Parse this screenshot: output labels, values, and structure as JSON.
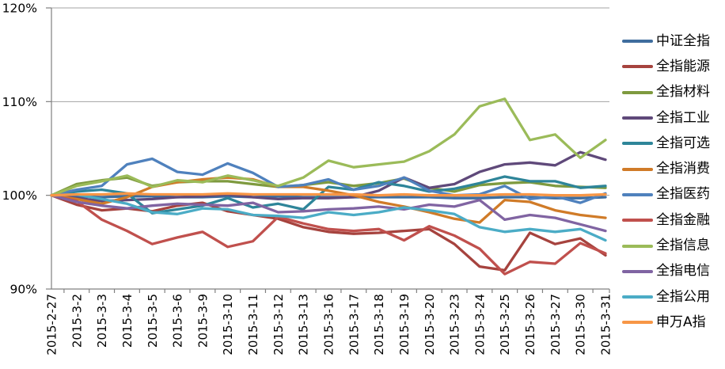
{
  "chart_data": {
    "type": "line",
    "title": "",
    "legend_position": "right",
    "grid": true,
    "y_axis": {
      "min": 90,
      "max": 120,
      "step": 10,
      "tick_labels": [
        "90%",
        "100%",
        "110%",
        "120%"
      ]
    },
    "x_axis": {
      "categories": [
        "2015-2-27",
        "2015-3-2",
        "2015-3-3",
        "2015-3-4",
        "2015-3-5",
        "2015-3-6",
        "2015-3-9",
        "2015-3-10",
        "2015-3-11",
        "2015-3-12",
        "2015-3-13",
        "2015-3-16",
        "2015-3-17",
        "2015-3-18",
        "2015-3-19",
        "2015-3-20",
        "2015-3-23",
        "2015-3-24",
        "2015-3-25",
        "2015-3-26",
        "2015-3-27",
        "2015-3-30",
        "2015-3-31"
      ]
    },
    "series": [
      {
        "name": "中证全指",
        "color": "#3F6D9E",
        "values": [
          100,
          99.9,
          99.8,
          99.9,
          99.9,
          99.8,
          99.8,
          99.9,
          99.8,
          99.9,
          99.8,
          99.8,
          99.8,
          99.8,
          99.8,
          99.8,
          99.7,
          99.7,
          99.8,
          99.8,
          99.7,
          99.7,
          99.8
        ]
      },
      {
        "name": "全指能源",
        "color": "#A6433E",
        "values": [
          100,
          99.0,
          98.4,
          98.6,
          98.3,
          98.9,
          99.2,
          98.3,
          97.9,
          97.5,
          96.6,
          96.1,
          95.9,
          96.0,
          96.2,
          96.4,
          94.8,
          92.4,
          92.0,
          96.0,
          94.8,
          95.4,
          93.6
        ]
      },
      {
        "name": "全指材料",
        "color": "#7E9A3F",
        "values": [
          100,
          101.2,
          101.6,
          101.9,
          101.0,
          101.4,
          101.5,
          101.5,
          101.2,
          100.9,
          101.1,
          101.4,
          101.0,
          101.3,
          101.8,
          100.8,
          100.4,
          101.1,
          101.3,
          101.4,
          101.0,
          100.9,
          100.8
        ]
      },
      {
        "name": "全指工业",
        "color": "#5F497A",
        "values": [
          100,
          99.7,
          99.4,
          99.5,
          99.6,
          99.8,
          99.9,
          100.1,
          99.8,
          99.6,
          99.7,
          99.7,
          99.8,
          100.5,
          101.9,
          100.8,
          101.2,
          102.5,
          103.3,
          103.5,
          103.2,
          104.6,
          103.8
        ]
      },
      {
        "name": "全指可选",
        "color": "#2E8599",
        "values": [
          100,
          100.4,
          100.6,
          100.2,
          98.1,
          98.5,
          98.9,
          99.7,
          98.7,
          99.1,
          98.5,
          100.9,
          100.6,
          101.4,
          101.0,
          100.4,
          100.7,
          101.3,
          102.0,
          101.5,
          101.5,
          100.8,
          101.0
        ]
      },
      {
        "name": "全指消费",
        "color": "#D07B28",
        "values": [
          100,
          99.6,
          99.1,
          99.8,
          100.9,
          101.4,
          101.7,
          101.9,
          101.7,
          100.9,
          100.9,
          100.5,
          100.0,
          99.3,
          98.8,
          98.2,
          97.5,
          97.1,
          99.5,
          99.3,
          98.4,
          97.9,
          97.6
        ]
      },
      {
        "name": "全指医药",
        "color": "#4F81BD",
        "values": [
          100,
          100.6,
          101.0,
          103.3,
          103.9,
          102.5,
          102.2,
          103.4,
          102.4,
          100.9,
          101.1,
          101.7,
          100.6,
          101.0,
          101.9,
          100.5,
          100.0,
          100.1,
          101.0,
          99.6,
          99.9,
          99.2,
          100.2
        ]
      },
      {
        "name": "全指金融",
        "color": "#C0504D",
        "values": [
          100,
          99.4,
          97.4,
          96.2,
          94.8,
          95.5,
          96.1,
          94.5,
          95.1,
          97.7,
          97.0,
          96.4,
          96.2,
          96.4,
          95.2,
          96.7,
          95.7,
          94.3,
          91.6,
          92.9,
          92.7,
          94.9,
          93.8
        ]
      },
      {
        "name": "全指信息",
        "color": "#9BBB59",
        "values": [
          100,
          101.0,
          101.5,
          102.1,
          100.9,
          101.6,
          101.4,
          102.1,
          101.6,
          101.0,
          101.9,
          103.7,
          103.0,
          103.3,
          103.6,
          104.7,
          106.5,
          109.5,
          110.3,
          105.9,
          106.5,
          104.0,
          105.9
        ]
      },
      {
        "name": "全指电信",
        "color": "#8064A2",
        "values": [
          100,
          99.3,
          98.9,
          98.6,
          98.9,
          99.1,
          99.0,
          98.9,
          99.2,
          98.2,
          98.3,
          98.5,
          98.6,
          98.8,
          98.5,
          99.0,
          98.8,
          99.5,
          97.4,
          97.9,
          97.6,
          96.9,
          96.2
        ]
      },
      {
        "name": "全指公用",
        "color": "#4BACC6",
        "values": [
          100,
          100.1,
          99.6,
          99.1,
          98.2,
          98.0,
          98.6,
          98.5,
          97.9,
          97.8,
          97.6,
          98.2,
          97.9,
          98.2,
          98.7,
          98.4,
          98.0,
          96.6,
          96.1,
          96.4,
          96.1,
          96.4,
          95.2
        ]
      },
      {
        "name": "申万A指",
        "color": "#F79646",
        "values": [
          100,
          100.1,
          100.1,
          100.2,
          100.1,
          100.1,
          100.1,
          100.2,
          100.1,
          100.1,
          100.1,
          100.1,
          100.1,
          100.0,
          100.1,
          100.0,
          100.0,
          100.0,
          100.1,
          100.1,
          100.0,
          100.0,
          100.1
        ]
      }
    ]
  }
}
